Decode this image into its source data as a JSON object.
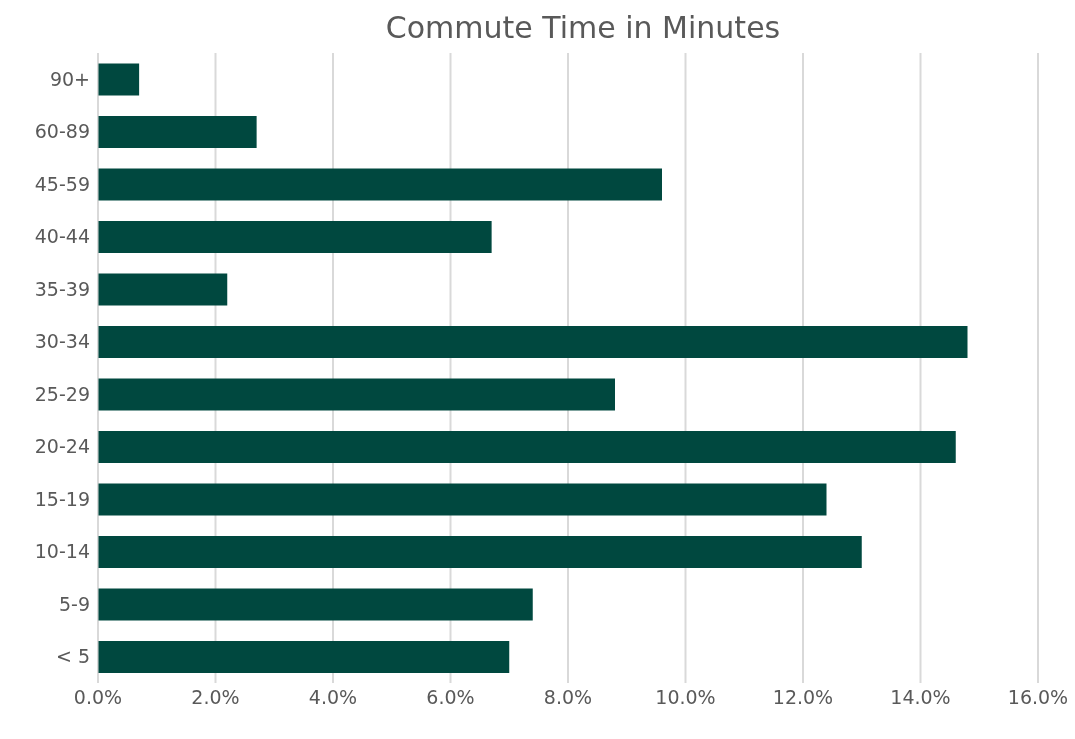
{
  "chart_data": {
    "type": "bar",
    "orientation": "horizontal",
    "title": "Commute Time in Minutes",
    "categories": [
      "90+",
      "60-89",
      "45-59",
      "40-44",
      "35-39",
      "30-34",
      "25-29",
      "20-24",
      "15-19",
      "10-14",
      "5-9",
      "< 5"
    ],
    "values": [
      0.7,
      2.7,
      9.6,
      6.7,
      2.2,
      14.8,
      8.8,
      14.6,
      12.4,
      13.0,
      7.4,
      7.0
    ],
    "color": "#00483f",
    "xlim": [
      0,
      16
    ],
    "xticks": [
      {
        "value": 0,
        "label": "0.0%"
      },
      {
        "value": 2,
        "label": "2.0%"
      },
      {
        "value": 4,
        "label": "4.0%"
      },
      {
        "value": 6,
        "label": "6.0%"
      },
      {
        "value": 8,
        "label": "8.0%"
      },
      {
        "value": 10,
        "label": "10.0%"
      },
      {
        "value": 12,
        "label": "12.0%"
      },
      {
        "value": 14,
        "label": "14.0%"
      },
      {
        "value": 16,
        "label": "16.0%"
      }
    ],
    "grid": "x"
  }
}
